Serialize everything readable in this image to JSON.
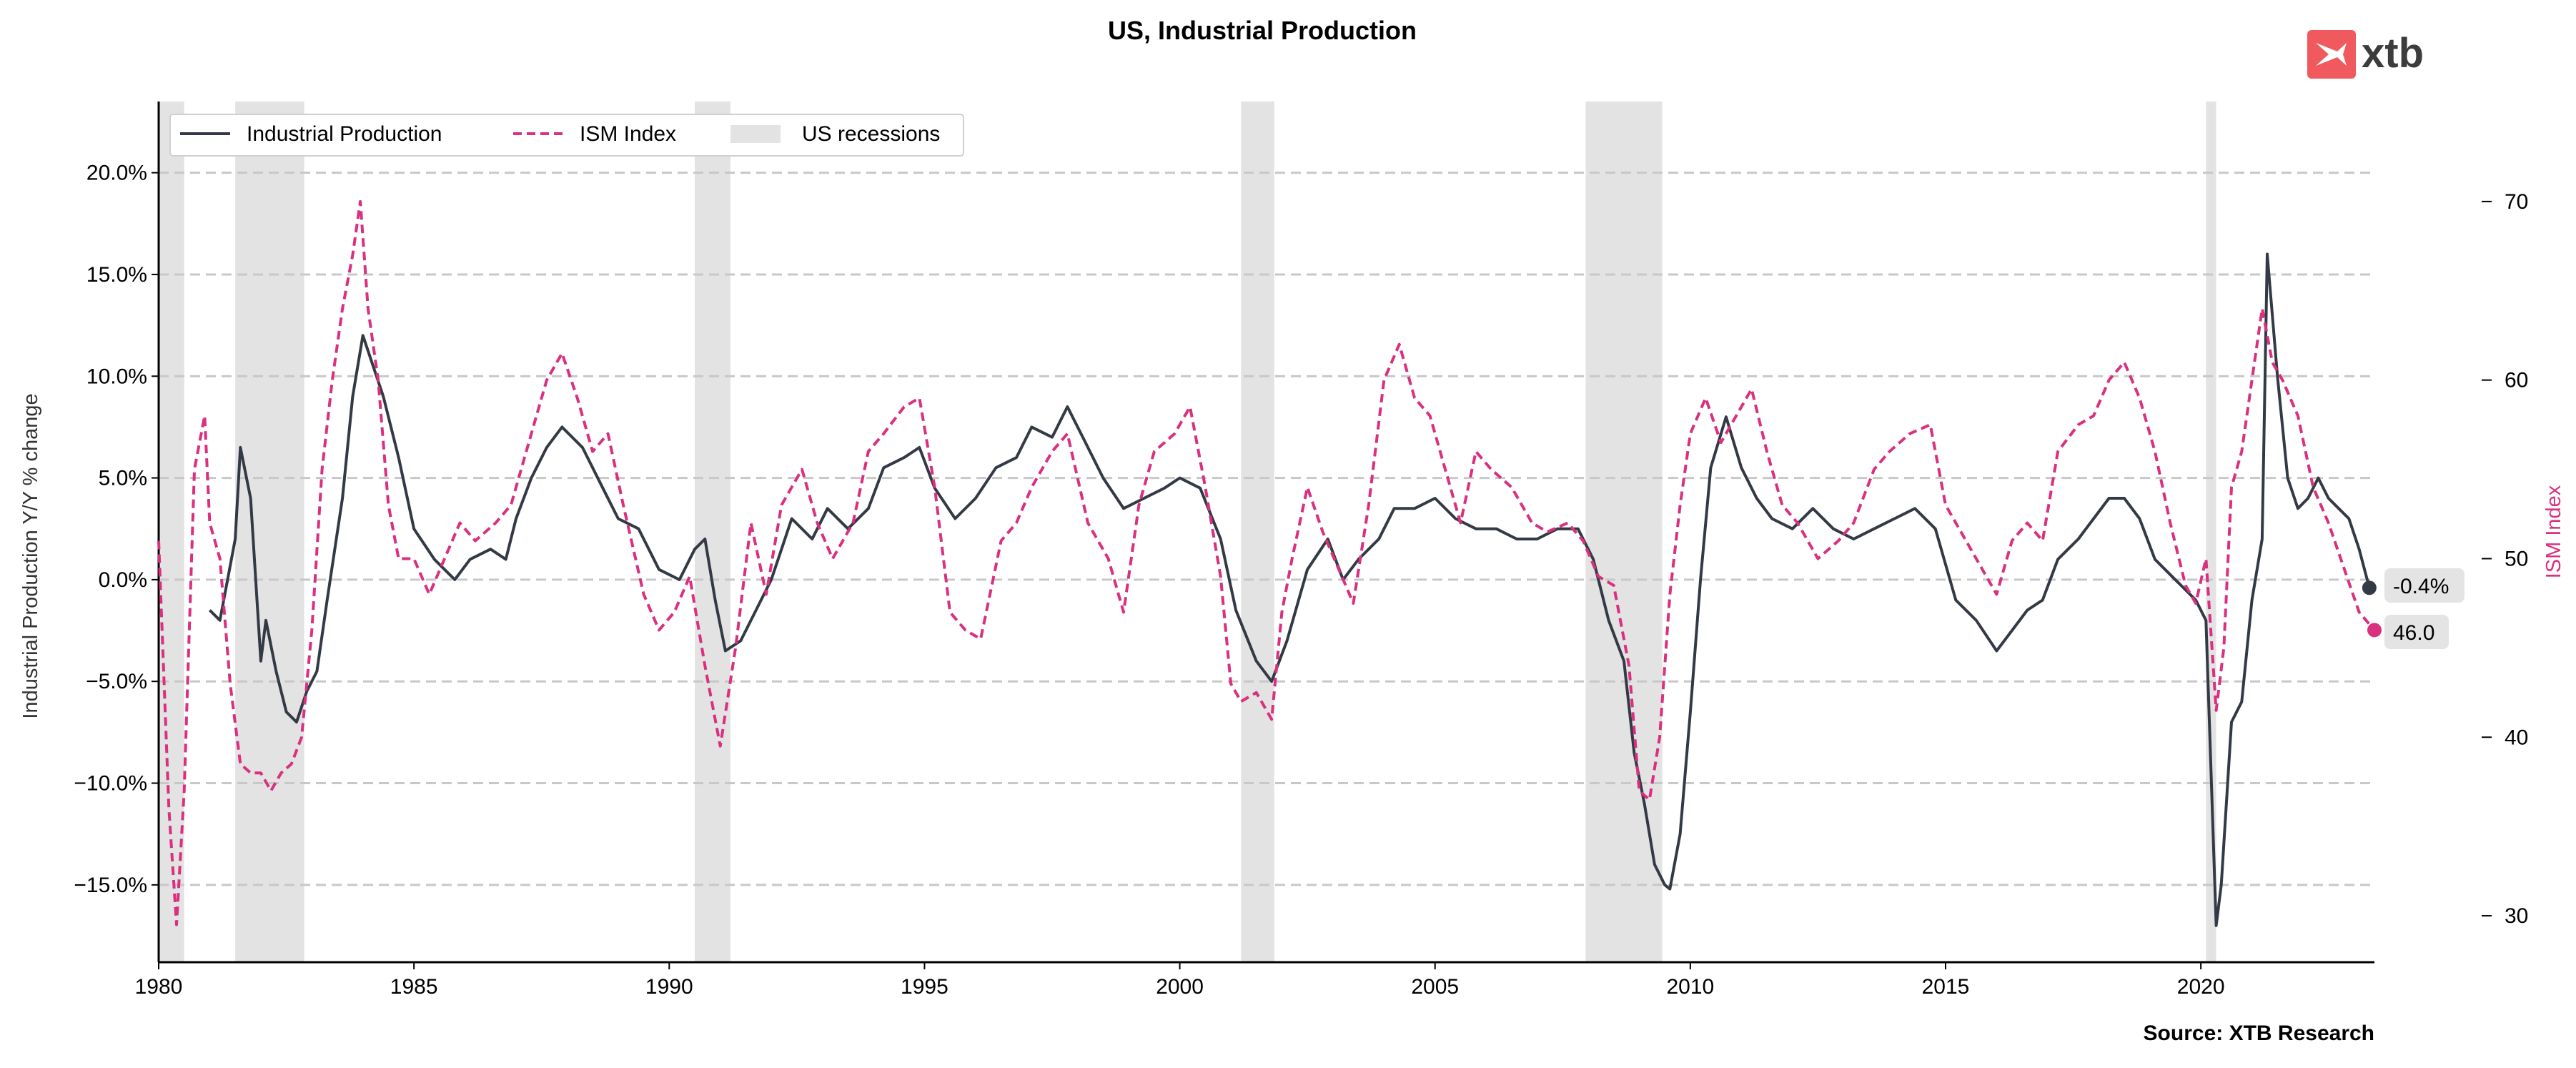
{
  "page": {
    "title": "US, Industrial Production",
    "source": "Source: XTB Research",
    "logo_text": "xtb",
    "colors": {
      "ip_line": "#343a45",
      "ism_line": "#d9307f",
      "recession": "#e3e3e3",
      "grid": "#c8c8c8",
      "logo_red": "#f05a5f",
      "logo_text": "#3c3c3c",
      "badge_bg": "#e4e4e4"
    }
  },
  "legend": {
    "ip": "Industrial Production",
    "ism": "ISM Index",
    "rec": "US recessions"
  },
  "badges": {
    "ip_last": "-0.4%",
    "ism_last": "46.0"
  },
  "chart_data": {
    "type": "line",
    "title": "US, Industrial Production",
    "xlabel": "",
    "ylabel_left": "Industrial Production Y/Y % change",
    "ylabel_right": "ISM Index",
    "xlim": [
      1980.0,
      2023.4
    ],
    "ylim_left": [
      -18.8,
      23.5
    ],
    "ylim_right": [
      27.4,
      75.6
    ],
    "x_ticks": [
      1980,
      1985,
      1990,
      1995,
      2000,
      2005,
      2010,
      2015,
      2020
    ],
    "x_tick_labels": [
      "1980",
      "1985",
      "1990",
      "1995",
      "2000",
      "2005",
      "2010",
      "2015",
      "2020"
    ],
    "y_left_ticks": [
      20,
      15,
      10,
      5,
      0,
      -5,
      -10,
      -15
    ],
    "y_left_tick_labels": [
      "20.0%",
      "15.0%",
      "10.0%",
      "5.0%",
      "0.0%",
      "−5.0%",
      "−10.0%",
      "−15.0%"
    ],
    "y_right_ticks": [
      70,
      60,
      50,
      40,
      30
    ],
    "y_right_tick_labels": [
      "70",
      "60",
      "50",
      "40",
      "30"
    ],
    "grid": "horizontal dashed",
    "legend_position": "top-left",
    "recessions": [
      [
        1980.0,
        1980.5
      ],
      [
        1981.5,
        1982.85
      ],
      [
        1990.5,
        1991.2
      ],
      [
        2001.2,
        2001.85
      ],
      [
        2007.95,
        2009.45
      ],
      [
        2020.1,
        2020.3
      ]
    ],
    "series": [
      {
        "name": "Industrial Production",
        "axis": "left",
        "style": "solid",
        "x": [
          1981.0,
          1981.2,
          1981.5,
          1981.6,
          1981.8,
          1982.0,
          1982.1,
          1982.3,
          1982.5,
          1982.7,
          1982.9,
          1983.1,
          1983.3,
          1983.6,
          1983.8,
          1984.0,
          1984.2,
          1984.4,
          1984.7,
          1985.0,
          1985.4,
          1985.8,
          1986.1,
          1986.5,
          1986.8,
          1987.0,
          1987.3,
          1987.6,
          1987.9,
          1988.3,
          1988.7,
          1989.0,
          1989.4,
          1989.8,
          1990.2,
          1990.5,
          1990.7,
          1990.9,
          1991.1,
          1991.4,
          1991.7,
          1992.0,
          1992.4,
          1992.8,
          1993.1,
          1993.5,
          1993.9,
          1994.2,
          1994.6,
          1994.9,
          1995.2,
          1995.6,
          1996.0,
          1996.4,
          1996.8,
          1997.1,
          1997.5,
          1997.8,
          1998.1,
          1998.5,
          1998.9,
          1999.3,
          1999.7,
          2000.0,
          2000.4,
          2000.8,
          2001.1,
          2001.5,
          2001.8,
          2002.1,
          2002.5,
          2002.9,
          2003.2,
          2003.5,
          2003.9,
          2004.2,
          2004.6,
          2005.0,
          2005.4,
          2005.8,
          2006.2,
          2006.6,
          2007.0,
          2007.4,
          2007.8,
          2008.1,
          2008.4,
          2008.7,
          2008.9,
          2009.1,
          2009.3,
          2009.5,
          2009.6,
          2009.8,
          2010.0,
          2010.2,
          2010.4,
          2010.7,
          2011.0,
          2011.3,
          2011.6,
          2012.0,
          2012.4,
          2012.8,
          2013.2,
          2013.6,
          2014.0,
          2014.4,
          2014.8,
          2015.2,
          2015.6,
          2016.0,
          2016.3,
          2016.6,
          2016.9,
          2017.2,
          2017.6,
          2017.9,
          2018.2,
          2018.5,
          2018.8,
          2019.1,
          2019.5,
          2019.9,
          2020.1,
          2020.3,
          2020.4,
          2020.6,
          2020.8,
          2021.0,
          2021.2,
          2021.3,
          2021.5,
          2021.7,
          2021.9,
          2022.1,
          2022.3,
          2022.5,
          2022.7,
          2022.9,
          2023.1,
          2023.3
        ],
        "y": [
          -1.5,
          -2.0,
          2.0,
          6.5,
          4.0,
          -4.0,
          -2.0,
          -4.5,
          -6.5,
          -7.0,
          -5.5,
          -4.5,
          -1.0,
          4.0,
          9.0,
          12.0,
          10.5,
          9.0,
          6.0,
          2.5,
          1.0,
          0.0,
          1.0,
          1.5,
          1.0,
          3.0,
          5.0,
          6.5,
          7.5,
          6.5,
          4.5,
          3.0,
          2.5,
          0.5,
          0.0,
          1.5,
          2.0,
          -1.0,
          -3.5,
          -3.0,
          -1.5,
          0.0,
          3.0,
          2.0,
          3.5,
          2.5,
          3.5,
          5.5,
          6.0,
          6.5,
          4.5,
          3.0,
          4.0,
          5.5,
          6.0,
          7.5,
          7.0,
          8.5,
          7.0,
          5.0,
          3.5,
          4.0,
          4.5,
          5.0,
          4.5,
          2.0,
          -1.5,
          -4.0,
          -5.0,
          -3.0,
          0.5,
          2.0,
          0.0,
          1.0,
          2.0,
          3.5,
          3.5,
          4.0,
          3.0,
          2.5,
          2.5,
          2.0,
          2.0,
          2.5,
          2.5,
          1.0,
          -2.0,
          -4.0,
          -8.5,
          -11.0,
          -14.0,
          -15.0,
          -15.2,
          -12.5,
          -6.5,
          0.0,
          5.5,
          8.0,
          5.5,
          4.0,
          3.0,
          2.5,
          3.5,
          2.5,
          2.0,
          2.5,
          3.0,
          3.5,
          2.5,
          -1.0,
          -2.0,
          -3.5,
          -2.5,
          -1.5,
          -1.0,
          1.0,
          2.0,
          3.0,
          4.0,
          4.0,
          3.0,
          1.0,
          0.0,
          -1.0,
          -2.0,
          -17.0,
          -15.0,
          -7.0,
          -6.0,
          -1.0,
          2.0,
          16.0,
          10.0,
          5.0,
          3.5,
          4.0,
          5.0,
          4.0,
          3.5,
          3.0,
          1.5,
          -0.4
        ]
      },
      {
        "name": "ISM Index",
        "axis": "right",
        "style": "dashed",
        "x": [
          1980.0,
          1980.2,
          1980.35,
          1980.5,
          1980.7,
          1980.9,
          1981.0,
          1981.2,
          1981.4,
          1981.6,
          1981.8,
          1982.0,
          1982.2,
          1982.4,
          1982.6,
          1982.8,
          1983.0,
          1983.2,
          1983.4,
          1983.6,
          1983.8,
          1983.95,
          1984.1,
          1984.3,
          1984.5,
          1984.7,
          1985.0,
          1985.3,
          1985.6,
          1985.9,
          1986.2,
          1986.6,
          1986.9,
          1987.3,
          1987.6,
          1987.9,
          1988.2,
          1988.5,
          1988.8,
          1989.1,
          1989.5,
          1989.8,
          1990.1,
          1990.4,
          1990.7,
          1991.0,
          1991.3,
          1991.6,
          1991.9,
          1992.2,
          1992.6,
          1992.9,
          1993.2,
          1993.6,
          1993.9,
          1994.2,
          1994.6,
          1994.9,
          1995.2,
          1995.5,
          1995.8,
          1996.1,
          1996.5,
          1996.8,
          1997.1,
          1997.5,
          1997.8,
          1998.2,
          1998.6,
          1998.9,
          1999.2,
          1999.5,
          1999.9,
          2000.2,
          2000.5,
          2000.8,
          2001.0,
          2001.2,
          2001.5,
          2001.8,
          2002.0,
          2002.2,
          2002.5,
          2002.8,
          2003.1,
          2003.4,
          2003.7,
          2004.0,
          2004.3,
          2004.6,
          2004.9,
          2005.2,
          2005.5,
          2005.8,
          2006.1,
          2006.5,
          2006.9,
          2007.2,
          2007.6,
          2007.9,
          2008.2,
          2008.5,
          2008.8,
          2009.0,
          2009.2,
          2009.4,
          2009.6,
          2009.8,
          2010.0,
          2010.3,
          2010.6,
          2010.9,
          2011.2,
          2011.5,
          2011.8,
          2012.1,
          2012.5,
          2012.9,
          2013.2,
          2013.6,
          2013.9,
          2014.3,
          2014.7,
          2015.0,
          2015.4,
          2015.7,
          2016.0,
          2016.3,
          2016.6,
          2016.9,
          2017.2,
          2017.6,
          2017.9,
          2018.2,
          2018.5,
          2018.8,
          2019.1,
          2019.4,
          2019.7,
          2019.9,
          2020.1,
          2020.3,
          2020.45,
          2020.6,
          2020.8,
          2021.0,
          2021.2,
          2021.4,
          2021.6,
          2021.9,
          2022.2,
          2022.5,
          2022.8,
          2023.1,
          2023.4
        ],
        "y": [
          51.0,
          36.0,
          29.5,
          37.0,
          55.0,
          58.0,
          52.0,
          50.0,
          43.0,
          38.5,
          38.0,
          38.0,
          37.0,
          38.0,
          38.5,
          40.0,
          46.0,
          55.0,
          60.0,
          64.0,
          67.0,
          70.0,
          64.0,
          60.0,
          53.0,
          50.0,
          50.0,
          48.0,
          50.0,
          52.0,
          51.0,
          52.0,
          53.0,
          57.0,
          60.0,
          61.5,
          59.0,
          56.0,
          57.0,
          53.0,
          48.0,
          46.0,
          47.0,
          49.0,
          44.0,
          39.5,
          45.0,
          52.0,
          48.0,
          53.0,
          55.0,
          52.0,
          50.0,
          52.0,
          56.0,
          57.0,
          58.5,
          59.0,
          54.0,
          47.0,
          46.0,
          45.5,
          51.0,
          52.0,
          54.0,
          56.0,
          57.0,
          52.0,
          50.0,
          47.0,
          53.0,
          56.0,
          57.0,
          58.5,
          54.0,
          49.0,
          43.0,
          42.0,
          42.5,
          41.0,
          47.0,
          50.0,
          54.0,
          51.5,
          49.5,
          47.5,
          53.0,
          60.0,
          62.0,
          59.0,
          58.0,
          55.0,
          52.0,
          56.0,
          55.0,
          54.0,
          52.0,
          51.5,
          52.0,
          51.0,
          49.0,
          48.5,
          44.0,
          37.0,
          36.5,
          40.0,
          48.0,
          53.0,
          57.0,
          59.0,
          56.5,
          58.0,
          59.5,
          56.0,
          53.0,
          52.0,
          50.0,
          51.0,
          52.0,
          55.0,
          56.0,
          57.0,
          57.5,
          53.0,
          51.0,
          49.5,
          48.0,
          51.0,
          52.0,
          51.0,
          56.0,
          57.5,
          58.0,
          60.0,
          61.0,
          59.0,
          56.0,
          52.0,
          48.5,
          47.5,
          50.0,
          41.5,
          45.0,
          54.0,
          56.0,
          60.0,
          64.0,
          61.0,
          60.0,
          58.0,
          54.0,
          52.0,
          49.5,
          47.0,
          46.0
        ]
      }
    ]
  }
}
